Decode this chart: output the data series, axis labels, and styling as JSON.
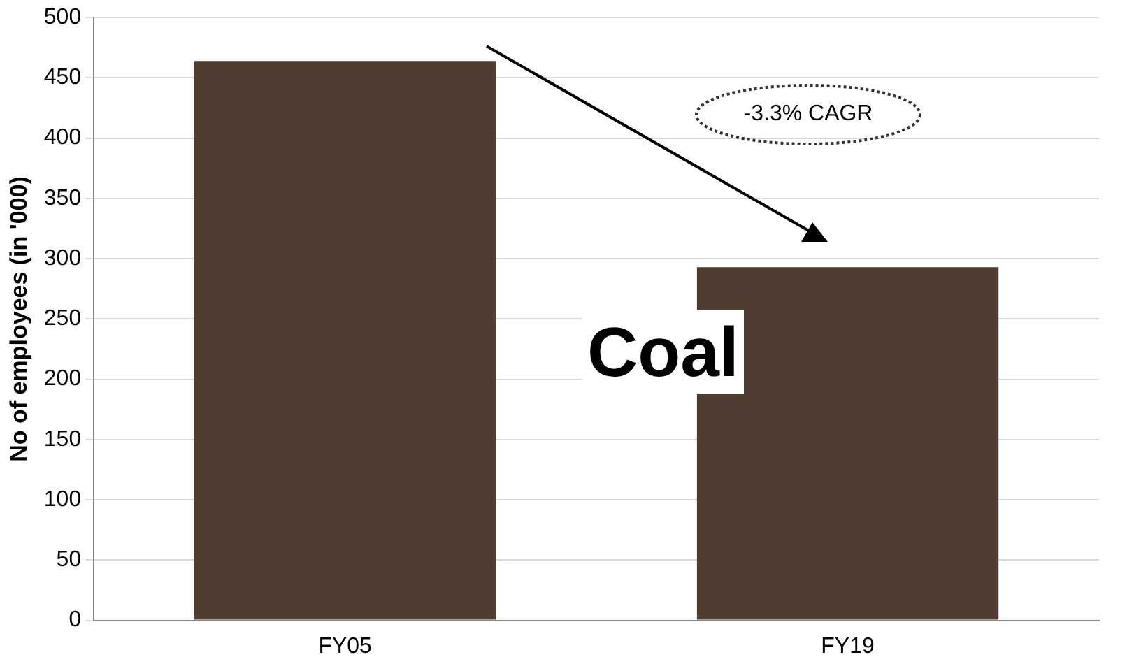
{
  "chart_data": {
    "type": "bar",
    "categories": [
      "FY05",
      "FY19"
    ],
    "values": [
      464,
      293
    ],
    "color": "#4e3d30",
    "ylabel": "No of employees (in '000)",
    "ylim": [
      0,
      500
    ],
    "yticks": [
      0,
      50,
      100,
      150,
      200,
      250,
      300,
      350,
      400,
      450,
      500
    ],
    "grid": "y",
    "legend": false,
    "annotations": [
      "-3.3% CAGR",
      "Coal"
    ]
  }
}
